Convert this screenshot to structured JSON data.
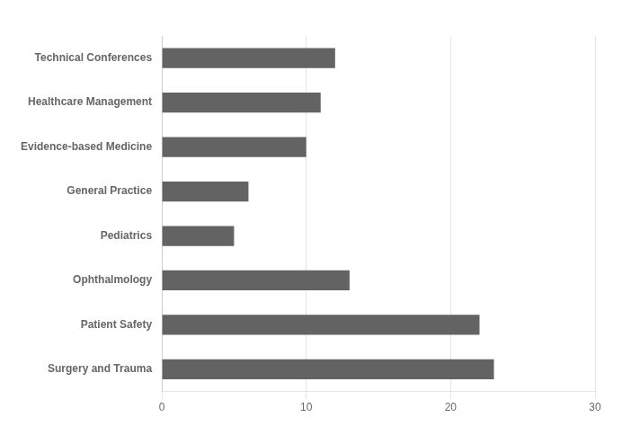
{
  "chart_data": {
    "type": "bar",
    "orientation": "horizontal",
    "categories": [
      "Surgery and Trauma",
      "Patient Safety",
      "Ophthalmology",
      "Pediatrics",
      "General Practice",
      "Evidence-based Medicine",
      "Healthcare Management",
      "Technical Conferences"
    ],
    "values": [
      23,
      22,
      13,
      5,
      6,
      10,
      11,
      12
    ],
    "color": "#636363",
    "xlim": [
      0,
      30
    ],
    "xticks": [
      0,
      10,
      20,
      30
    ],
    "grid": true
  }
}
